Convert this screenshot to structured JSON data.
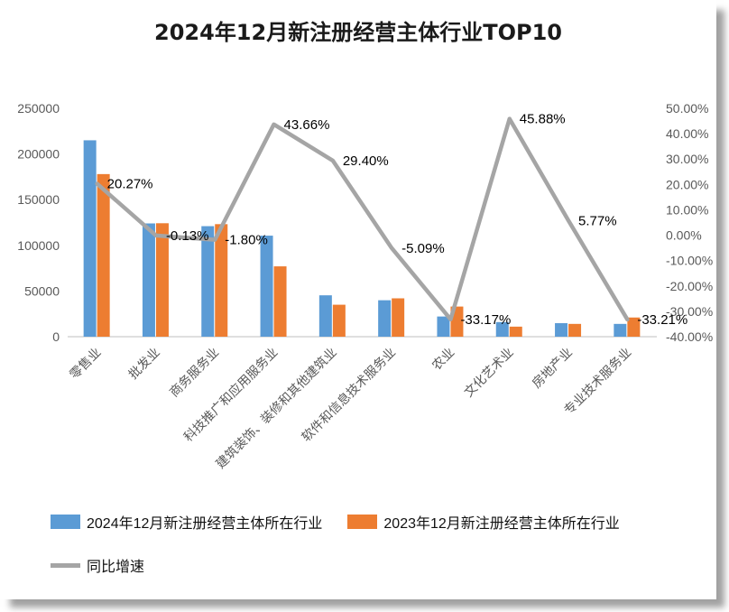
{
  "title": "2024年12月新注册经营主体行业TOP10",
  "chart_data": {
    "type": "bar",
    "subtype": "grouped-bar-with-line",
    "title": "2024年12月新注册经营主体行业TOP10",
    "categories": [
      "零售业",
      "批发业",
      "商务服务业",
      "科技推广和应用服务业",
      "建筑装饰、装修和其他建筑业",
      "软件和信息技术服务业",
      "农业",
      "文化艺术业",
      "房地产业",
      "专业技术服务业"
    ],
    "series": [
      {
        "name": "2024年12月新注册经营主体所在行业",
        "type": "bar",
        "color": "#5B9BD5",
        "values": [
          215000,
          124000,
          121000,
          110600,
          45300,
          39900,
          22100,
          16000,
          14800,
          14000
        ]
      },
      {
        "name": "2023年12月新注册经营主体所在行业",
        "type": "bar",
        "color": "#ED7D31",
        "values": [
          178000,
          124200,
          123200,
          77000,
          35000,
          42000,
          33000,
          11000,
          14000,
          21000
        ]
      },
      {
        "name": "同比增速",
        "type": "line",
        "color": "#A5A5A5",
        "values": [
          20.27,
          -0.13,
          -1.8,
          43.66,
          29.4,
          -5.09,
          -33.17,
          45.88,
          5.77,
          -33.21
        ],
        "labels": [
          "20.27%",
          "-0.13%",
          "-1.80%",
          "43.66%",
          "29.40%",
          "-5.09%",
          "-33.17%",
          "45.88%",
          "5.77%",
          "-33.21%"
        ]
      }
    ],
    "left_axis": {
      "min": 0,
      "max": 250000,
      "step": 50000,
      "ticks": [
        "0",
        "50000",
        "100000",
        "150000",
        "200000",
        "250000"
      ]
    },
    "right_axis": {
      "min": -40,
      "max": 50,
      "step": 10,
      "ticks": [
        "50.00%",
        "40.00%",
        "30.00%",
        "20.00%",
        "10.00%",
        "0.00%",
        "-10.00%",
        "-20.00%",
        "-30.00%",
        "-40.00%"
      ]
    },
    "legend_position": "bottom",
    "grid": false,
    "axis_line_color": "#BFBFBF"
  }
}
